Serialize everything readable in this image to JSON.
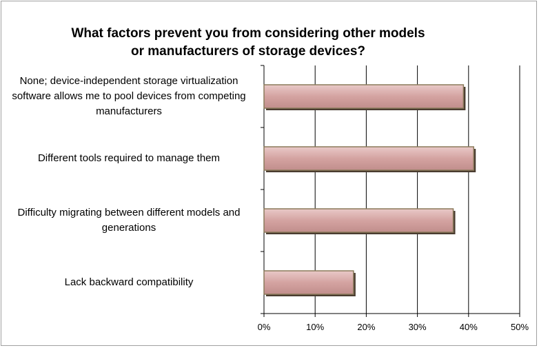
{
  "chart_data": {
    "type": "bar",
    "orientation": "horizontal",
    "title": "What factors prevent you from considering other models or manufacturers of storage devices?",
    "categories": [
      "None; device-independent storage virtualization software allows me to pool devices from competing manufacturers",
      "Different tools required to manage them",
      "Difficulty migrating between different models and generations",
      "Lack backward compatibility"
    ],
    "values": [
      39,
      41,
      37,
      17.5
    ],
    "color": "#d4a3a1",
    "xlim": [
      0,
      50
    ],
    "xticks": [
      {
        "value": 0,
        "label": "0%"
      },
      {
        "value": 10,
        "label": "10%"
      },
      {
        "value": 20,
        "label": "20%"
      },
      {
        "value": 30,
        "label": "30%"
      },
      {
        "value": 40,
        "label": "40%"
      },
      {
        "value": 50,
        "label": "50%"
      }
    ],
    "grid": true
  }
}
